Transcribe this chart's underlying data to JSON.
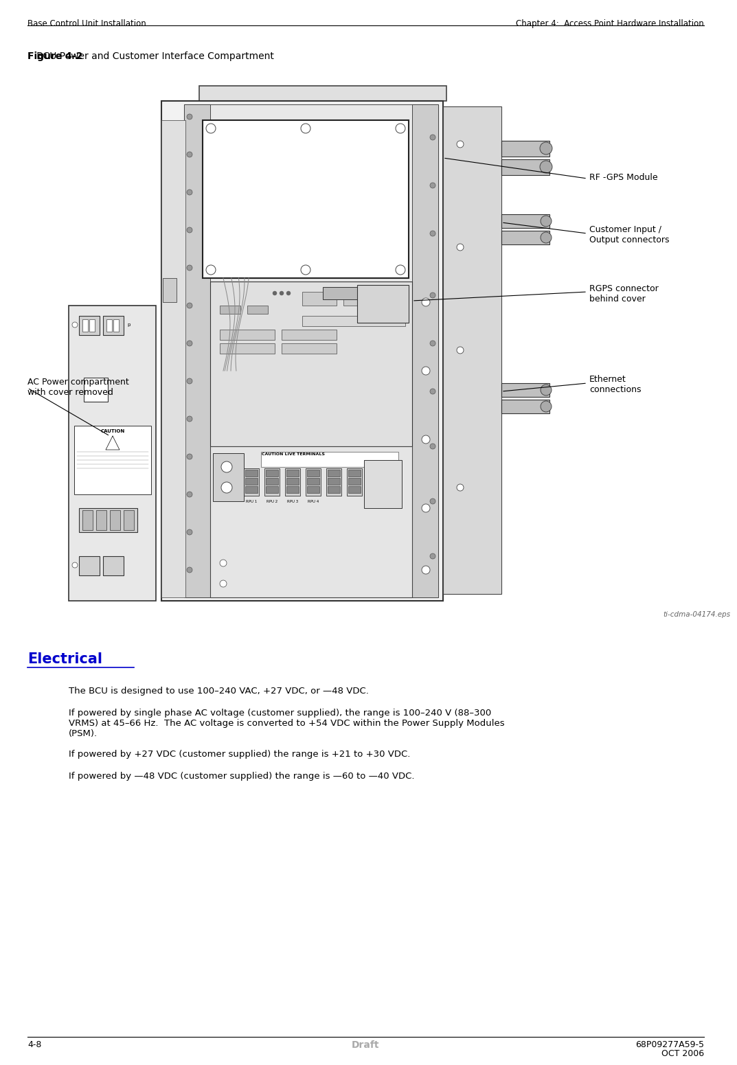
{
  "page_width": 10.45,
  "page_height": 15.27,
  "bg_color": "#ffffff",
  "header_left": "Base Control Unit Installation",
  "header_right": "Chapter 4:  Access Point Hardware Installation",
  "header_fontsize": 8.5,
  "figure_label": "Figure 4-2",
  "figure_title": "   BCU Power and Customer Interface Compartment",
  "figure_label_fontsize": 10,
  "figure_title_fontsize": 10,
  "eps_label": "ti-cdma-04174.eps",
  "eps_fontsize": 7.5,
  "callout_rf_gps": "RF -GPS Module",
  "callout_customer": "Customer Input /\nOutput connectors",
  "callout_rgps": "RGPS connector\nbehind cover",
  "callout_ethernet": "Ethernet\nconnections",
  "callout_ac_power": "AC Power compartment\nwith cover removed",
  "callout_fontsize": 9,
  "section_title": "Electrical",
  "section_fontsize": 15,
  "section_color": "#0000cc",
  "para1": "The BCU is designed to use 100–240 VAC, +27 VDC, or —48 VDC.",
  "para2": "If powered by single phase AC voltage (customer supplied), the range is 100–240 V (88–300\nVRMS) at 45–66 Hz.  The AC voltage is converted to +54 VDC within the Power Supply Modules\n(PSM).",
  "para3": "If powered by +27 VDC (customer supplied) the range is +21 to +30 VDC.",
  "para4": "If powered by —48 VDC (customer supplied) the range is —60 to —40 VDC.",
  "para_fontsize": 9.5,
  "footer_left": "4-8",
  "footer_center": "Draft",
  "footer_right_line1": "68P09277A59-5",
  "footer_right_line2": "OCT 2006",
  "footer_fontsize": 9,
  "footer_center_color": "#aaaaaa"
}
